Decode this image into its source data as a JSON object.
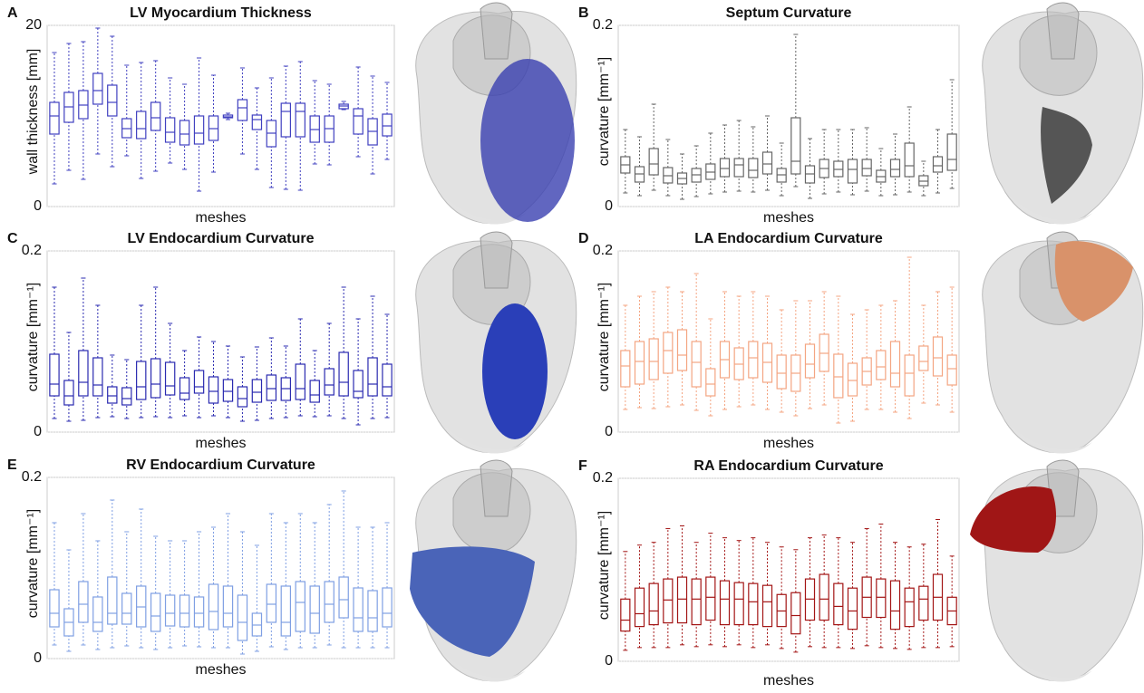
{
  "chart_data": [
    {
      "type": "box",
      "panel_label": "A",
      "title": "LV Myocardium Thickness",
      "x_label": "meshes",
      "y_label": "wall thickness [mm]",
      "color": "#4040c0",
      "ylim": [
        0,
        20
      ],
      "yticks": [
        0,
        20
      ],
      "grid": true,
      "min": [
        2.5,
        4,
        3,
        5.8,
        4.4,
        5.6,
        3.1,
        3.9,
        4.8,
        4.1,
        1.7,
        3.8,
        9.6,
        5.8,
        4.1,
        2.1,
        1.9,
        1.8,
        4.7,
        4.6,
        10.7,
        5.5,
        3.6,
        5.2
      ],
      "q1": [
        8,
        9.3,
        9.7,
        11.3,
        10,
        7.6,
        7.5,
        8.4,
        7.1,
        6.8,
        6.9,
        7.3,
        9.8,
        9.5,
        8.5,
        6.6,
        7.7,
        7.7,
        7.1,
        7.1,
        10.8,
        8,
        6.8,
        7.8
      ],
      "median": [
        10,
        11,
        11.2,
        12.8,
        11.5,
        8.6,
        8.6,
        9.8,
        8.2,
        8,
        8.1,
        8.6,
        9.9,
        10.9,
        9.6,
        8.1,
        10.5,
        10.5,
        8.5,
        8.6,
        11.1,
        10,
        8.3,
        8.9
      ],
      "q3": [
        11.5,
        12.6,
        12.8,
        14.7,
        13.4,
        9.7,
        10.5,
        11.5,
        9.8,
        9.5,
        10,
        10,
        10.1,
        11.8,
        10.1,
        9.5,
        11.4,
        11.4,
        10,
        10,
        11.3,
        10.8,
        9.7,
        10.2
      ],
      "max": [
        17,
        18,
        18.2,
        19.7,
        18.8,
        15.6,
        15.9,
        16.1,
        14.2,
        13.5,
        16.4,
        14.5,
        10.3,
        15.3,
        13.1,
        14.2,
        15.5,
        16,
        13.9,
        13.5,
        11.6,
        15.4,
        14.4,
        13.7
      ]
    },
    {
      "type": "box",
      "panel_label": "B",
      "title": "Septum Curvature",
      "x_label": "meshes",
      "y_label": "curvature [mm⁻¹]",
      "color": "#666666",
      "ylim": [
        0,
        0.2
      ],
      "yticks": [
        0,
        0.2
      ],
      "grid": true,
      "min": [
        0.015,
        0.012,
        0.018,
        0.012,
        0.008,
        0.011,
        0.014,
        0.016,
        0.017,
        0.016,
        0.018,
        0.012,
        0.022,
        0.009,
        0.014,
        0.016,
        0.013,
        0.017,
        0.012,
        0.013,
        0.016,
        0.012,
        0.015,
        0.02
      ],
      "q1": [
        0.037,
        0.027,
        0.035,
        0.026,
        0.025,
        0.027,
        0.03,
        0.033,
        0.033,
        0.032,
        0.036,
        0.027,
        0.036,
        0.026,
        0.032,
        0.033,
        0.026,
        0.034,
        0.027,
        0.033,
        0.033,
        0.023,
        0.038,
        0.04
      ],
      "median": [
        0.046,
        0.036,
        0.047,
        0.034,
        0.031,
        0.035,
        0.038,
        0.042,
        0.046,
        0.04,
        0.047,
        0.035,
        0.05,
        0.036,
        0.042,
        0.041,
        0.041,
        0.042,
        0.033,
        0.041,
        0.045,
        0.028,
        0.045,
        0.052
      ],
      "q3": [
        0.055,
        0.044,
        0.064,
        0.043,
        0.037,
        0.042,
        0.047,
        0.053,
        0.053,
        0.053,
        0.06,
        0.042,
        0.098,
        0.045,
        0.052,
        0.05,
        0.052,
        0.052,
        0.04,
        0.052,
        0.07,
        0.034,
        0.055,
        0.08
      ],
      "max": [
        0.085,
        0.077,
        0.113,
        0.074,
        0.058,
        0.067,
        0.081,
        0.09,
        0.095,
        0.088,
        0.1,
        0.07,
        0.19,
        0.075,
        0.085,
        0.085,
        0.085,
        0.087,
        0.064,
        0.08,
        0.11,
        0.05,
        0.085,
        0.14
      ]
    },
    {
      "type": "box",
      "panel_label": "C",
      "title": "LV Endocardium Curvature",
      "x_label": "meshes",
      "y_label": "curvature [mm⁻¹]",
      "color": "#2a2ab0",
      "ylim": [
        0,
        0.2
      ],
      "yticks": [
        0,
        0.2
      ],
      "grid": true,
      "min": [
        0.015,
        0.012,
        0.013,
        0.016,
        0.017,
        0.015,
        0.016,
        0.017,
        0.016,
        0.018,
        0.016,
        0.018,
        0.016,
        0.012,
        0.013,
        0.015,
        0.016,
        0.018,
        0.017,
        0.018,
        0.015,
        0.008,
        0.015,
        0.016
      ],
      "q1": [
        0.04,
        0.03,
        0.04,
        0.04,
        0.032,
        0.03,
        0.036,
        0.038,
        0.041,
        0.036,
        0.043,
        0.032,
        0.034,
        0.028,
        0.033,
        0.035,
        0.035,
        0.036,
        0.033,
        0.041,
        0.04,
        0.038,
        0.04,
        0.04
      ],
      "median": [
        0.053,
        0.04,
        0.055,
        0.052,
        0.04,
        0.037,
        0.05,
        0.053,
        0.051,
        0.043,
        0.05,
        0.045,
        0.045,
        0.037,
        0.044,
        0.048,
        0.048,
        0.048,
        0.041,
        0.052,
        0.055,
        0.045,
        0.053,
        0.05
      ],
      "q3": [
        0.086,
        0.057,
        0.09,
        0.082,
        0.05,
        0.049,
        0.078,
        0.081,
        0.077,
        0.06,
        0.068,
        0.061,
        0.058,
        0.05,
        0.058,
        0.063,
        0.06,
        0.075,
        0.057,
        0.07,
        0.088,
        0.068,
        0.082,
        0.075
      ],
      "max": [
        0.16,
        0.11,
        0.17,
        0.14,
        0.085,
        0.08,
        0.14,
        0.16,
        0.12,
        0.09,
        0.105,
        0.1,
        0.095,
        0.083,
        0.094,
        0.104,
        0.095,
        0.125,
        0.09,
        0.12,
        0.16,
        0.125,
        0.15,
        0.13
      ]
    },
    {
      "type": "box",
      "panel_label": "D",
      "title": "LA Endocardium Curvature",
      "x_label": "meshes",
      "y_label": "curvature [mm⁻¹]",
      "color": "#f4a582",
      "ylim": [
        0,
        0.2
      ],
      "yticks": [
        0,
        0.2
      ],
      "grid": true,
      "min": [
        0.025,
        0.027,
        0.026,
        0.028,
        0.03,
        0.024,
        0.018,
        0.025,
        0.028,
        0.03,
        0.025,
        0.022,
        0.018,
        0.026,
        0.03,
        0.01,
        0.012,
        0.025,
        0.025,
        0.022,
        0.015,
        0.032,
        0.03,
        0.022
      ],
      "q1": [
        0.05,
        0.053,
        0.058,
        0.065,
        0.068,
        0.05,
        0.04,
        0.06,
        0.058,
        0.06,
        0.055,
        0.048,
        0.045,
        0.06,
        0.067,
        0.038,
        0.04,
        0.052,
        0.058,
        0.05,
        0.04,
        0.068,
        0.062,
        0.052
      ],
      "median": [
        0.073,
        0.078,
        0.078,
        0.09,
        0.085,
        0.077,
        0.053,
        0.08,
        0.075,
        0.082,
        0.077,
        0.065,
        0.065,
        0.075,
        0.087,
        0.061,
        0.057,
        0.067,
        0.072,
        0.065,
        0.065,
        0.078,
        0.082,
        0.07
      ],
      "q3": [
        0.09,
        0.1,
        0.103,
        0.11,
        0.113,
        0.1,
        0.07,
        0.1,
        0.093,
        0.1,
        0.098,
        0.085,
        0.085,
        0.097,
        0.108,
        0.086,
        0.076,
        0.082,
        0.09,
        0.1,
        0.085,
        0.095,
        0.105,
        0.085
      ],
      "max": [
        0.14,
        0.15,
        0.155,
        0.16,
        0.155,
        0.175,
        0.125,
        0.155,
        0.15,
        0.155,
        0.15,
        0.135,
        0.145,
        0.145,
        0.155,
        0.15,
        0.13,
        0.135,
        0.14,
        0.145,
        0.193,
        0.14,
        0.155,
        0.16
      ]
    },
    {
      "type": "box",
      "panel_label": "E",
      "title": "RV Endocardium Curvature",
      "x_label": "meshes",
      "y_label": "curvature [mm⁻¹]",
      "color": "#7f9fe3",
      "ylim": [
        0,
        0.2
      ],
      "yticks": [
        0,
        0.2
      ],
      "grid": true,
      "min": [
        0.015,
        0.008,
        0.015,
        0.01,
        0.012,
        0.014,
        0.012,
        0.01,
        0.012,
        0.014,
        0.013,
        0.012,
        0.012,
        0.005,
        0.008,
        0.013,
        0.01,
        0.012,
        0.012,
        0.015,
        0.012,
        0.012,
        0.012,
        0.012
      ],
      "q1": [
        0.035,
        0.025,
        0.04,
        0.03,
        0.038,
        0.038,
        0.035,
        0.03,
        0.036,
        0.035,
        0.035,
        0.032,
        0.035,
        0.02,
        0.025,
        0.04,
        0.025,
        0.03,
        0.028,
        0.04,
        0.045,
        0.03,
        0.03,
        0.035
      ],
      "median": [
        0.05,
        0.04,
        0.06,
        0.04,
        0.05,
        0.05,
        0.057,
        0.047,
        0.05,
        0.05,
        0.05,
        0.052,
        0.05,
        0.04,
        0.037,
        0.06,
        0.04,
        0.062,
        0.05,
        0.06,
        0.065,
        0.045,
        0.045,
        0.05
      ],
      "q3": [
        0.076,
        0.055,
        0.085,
        0.068,
        0.09,
        0.072,
        0.08,
        0.072,
        0.07,
        0.07,
        0.068,
        0.082,
        0.08,
        0.07,
        0.05,
        0.082,
        0.08,
        0.085,
        0.08,
        0.085,
        0.09,
        0.078,
        0.075,
        0.078
      ],
      "max": [
        0.15,
        0.12,
        0.16,
        0.13,
        0.175,
        0.14,
        0.165,
        0.135,
        0.13,
        0.13,
        0.14,
        0.145,
        0.16,
        0.14,
        0.125,
        0.16,
        0.15,
        0.16,
        0.15,
        0.17,
        0.185,
        0.145,
        0.145,
        0.15
      ]
    },
    {
      "type": "box",
      "panel_label": "F",
      "title": "RA Endocardium Curvature",
      "x_label": "meshes",
      "y_label": "curvature [mm⁻¹]",
      "color": "#a31515",
      "ylim": [
        0,
        0.2
      ],
      "yticks": [
        0,
        0.2
      ],
      "grid": true,
      "min": [
        0.012,
        0.015,
        0.015,
        0.015,
        0.018,
        0.016,
        0.018,
        0.016,
        0.018,
        0.015,
        0.018,
        0.014,
        0.01,
        0.016,
        0.015,
        0.015,
        0.014,
        0.017,
        0.015,
        0.014,
        0.013,
        0.015,
        0.015,
        0.016
      ],
      "q1": [
        0.033,
        0.038,
        0.04,
        0.042,
        0.042,
        0.04,
        0.045,
        0.04,
        0.04,
        0.04,
        0.038,
        0.038,
        0.03,
        0.045,
        0.045,
        0.04,
        0.035,
        0.048,
        0.048,
        0.035,
        0.038,
        0.045,
        0.045,
        0.04
      ],
      "median": [
        0.045,
        0.052,
        0.055,
        0.067,
        0.068,
        0.068,
        0.07,
        0.068,
        0.068,
        0.065,
        0.065,
        0.055,
        0.05,
        0.068,
        0.068,
        0.06,
        0.055,
        0.07,
        0.07,
        0.055,
        0.065,
        0.068,
        0.07,
        0.055
      ],
      "q3": [
        0.068,
        0.08,
        0.085,
        0.09,
        0.092,
        0.09,
        0.092,
        0.088,
        0.086,
        0.085,
        0.083,
        0.073,
        0.075,
        0.09,
        0.095,
        0.085,
        0.08,
        0.092,
        0.09,
        0.088,
        0.08,
        0.082,
        0.095,
        0.07
      ],
      "max": [
        0.12,
        0.127,
        0.13,
        0.145,
        0.148,
        0.13,
        0.14,
        0.135,
        0.132,
        0.135,
        0.13,
        0.125,
        0.122,
        0.135,
        0.138,
        0.135,
        0.13,
        0.145,
        0.15,
        0.13,
        0.125,
        0.128,
        0.155,
        0.115
      ]
    }
  ]
}
